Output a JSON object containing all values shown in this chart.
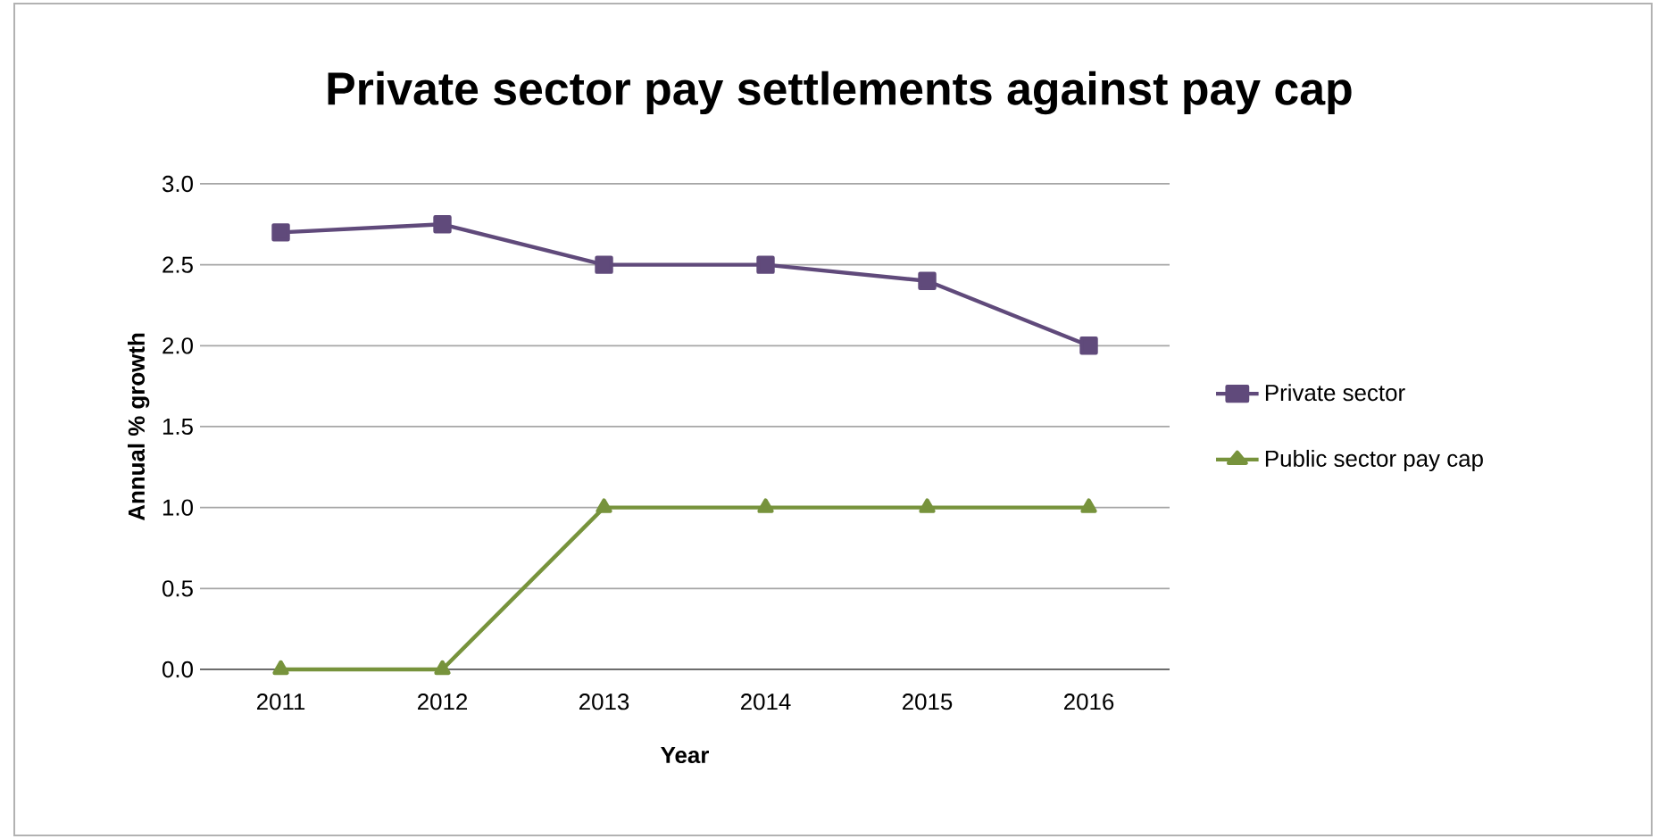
{
  "chart_data": {
    "type": "line",
    "title": "Private sector pay settlements against pay cap",
    "xlabel": "Year",
    "ylabel": "Annual % growth",
    "categories": [
      "2011",
      "2012",
      "2013",
      "2014",
      "2015",
      "2016"
    ],
    "series": [
      {
        "name": "Private sector",
        "color": "#604a7b",
        "marker": "square",
        "values": [
          2.7,
          2.75,
          2.5,
          2.5,
          2.4,
          2.0
        ]
      },
      {
        "name": "Public sector pay cap",
        "color": "#77933c",
        "marker": "triangle",
        "values": [
          0,
          0,
          1.0,
          1.0,
          1.0,
          1.0
        ]
      }
    ],
    "ylim": [
      0,
      3.0
    ],
    "yticks": [
      {
        "value": 0,
        "label": "0.0"
      },
      {
        "value": 0.5,
        "label": "0.5"
      },
      {
        "value": 1.0,
        "label": "1.0"
      },
      {
        "value": 1.5,
        "label": "1.5"
      },
      {
        "value": 2.0,
        "label": "2.0"
      },
      {
        "value": 2.5,
        "label": "2.5"
      },
      {
        "value": 3.0,
        "label": "3.0"
      }
    ],
    "grid": "y",
    "legend": "right"
  }
}
